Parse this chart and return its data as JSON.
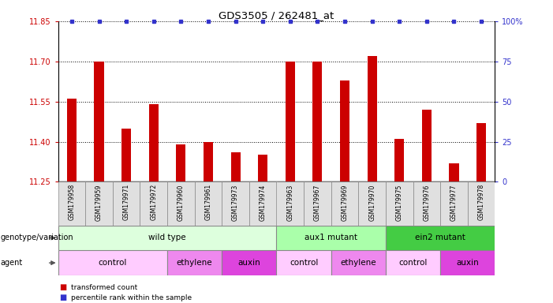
{
  "title": "GDS3505 / 262481_at",
  "samples": [
    "GSM179958",
    "GSM179959",
    "GSM179971",
    "GSM179972",
    "GSM179960",
    "GSM179961",
    "GSM179973",
    "GSM179974",
    "GSM179963",
    "GSM179967",
    "GSM179969",
    "GSM179970",
    "GSM179975",
    "GSM179976",
    "GSM179977",
    "GSM179978"
  ],
  "values": [
    11.56,
    11.7,
    11.45,
    11.54,
    11.39,
    11.4,
    11.36,
    11.35,
    11.7,
    11.7,
    11.63,
    11.72,
    11.41,
    11.52,
    11.32,
    11.47
  ],
  "ylim_left": [
    11.25,
    11.85
  ],
  "ylim_right": [
    0,
    100
  ],
  "yticks_left": [
    11.25,
    11.4,
    11.55,
    11.7,
    11.85
  ],
  "yticks_right": [
    0,
    25,
    50,
    75,
    100
  ],
  "bar_color": "#cc0000",
  "dot_color": "#3333cc",
  "genotype_groups": [
    {
      "label": "wild type",
      "start": 0,
      "end": 8,
      "color": "#ddffdd"
    },
    {
      "label": "aux1 mutant",
      "start": 8,
      "end": 12,
      "color": "#aaffaa"
    },
    {
      "label": "ein2 mutant",
      "start": 12,
      "end": 16,
      "color": "#44cc44"
    }
  ],
  "agent_groups": [
    {
      "label": "control",
      "start": 0,
      "end": 4,
      "color": "#ffccff"
    },
    {
      "label": "ethylene",
      "start": 4,
      "end": 6,
      "color": "#ee88ee"
    },
    {
      "label": "auxin",
      "start": 6,
      "end": 8,
      "color": "#dd44dd"
    },
    {
      "label": "control",
      "start": 8,
      "end": 10,
      "color": "#ffccff"
    },
    {
      "label": "ethylene",
      "start": 10,
      "end": 12,
      "color": "#ee88ee"
    },
    {
      "label": "control",
      "start": 12,
      "end": 14,
      "color": "#ffccff"
    },
    {
      "label": "auxin",
      "start": 14,
      "end": 16,
      "color": "#dd44dd"
    }
  ],
  "left_axis_color": "#cc0000",
  "right_axis_color": "#3333cc",
  "sample_cell_color": "#e0e0e0"
}
